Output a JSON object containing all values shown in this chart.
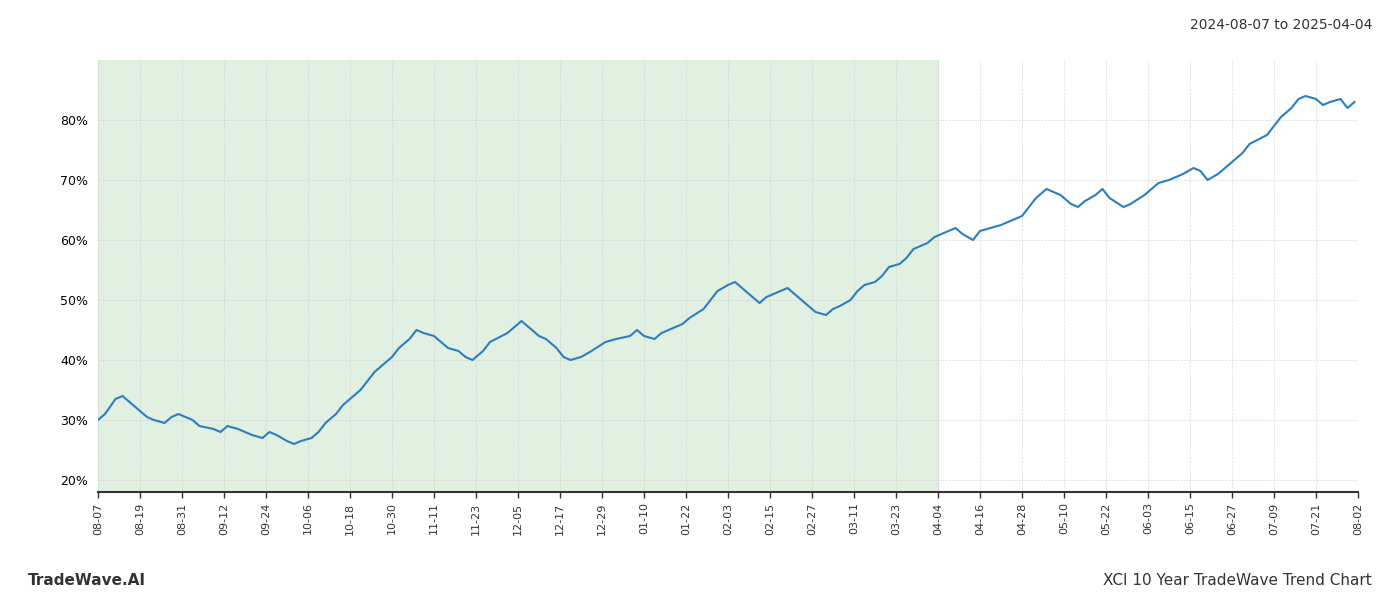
{
  "title_top_right": "2024-08-07 to 2025-04-04",
  "footer_left": "TradeWave.AI",
  "footer_right": "XCI 10 Year TradeWave Trend Chart",
  "line_color": "#2a7fc1",
  "line_width": 1.5,
  "shaded_region_color": "#d6ead6",
  "shaded_alpha": 0.7,
  "background_color": "#ffffff",
  "grid_color": "#cccccc",
  "yticks": [
    20,
    30,
    40,
    50,
    60,
    70,
    80
  ],
  "ylim": [
    18,
    90
  ],
  "x_start": "2024-08-07",
  "x_end": "2025-08-02",
  "shade_start": "2024-08-07",
  "shade_end": "2025-04-04",
  "dates": [
    "2024-08-07",
    "2024-08-09",
    "2024-08-12",
    "2024-08-14",
    "2024-08-16",
    "2024-08-19",
    "2024-08-21",
    "2024-08-23",
    "2024-08-26",
    "2024-08-28",
    "2024-08-30",
    "2024-09-03",
    "2024-09-05",
    "2024-09-09",
    "2024-09-11",
    "2024-09-13",
    "2024-09-16",
    "2024-09-18",
    "2024-09-20",
    "2024-09-23",
    "2024-09-25",
    "2024-09-27",
    "2024-09-30",
    "2024-10-02",
    "2024-10-04",
    "2024-10-07",
    "2024-10-09",
    "2024-10-11",
    "2024-10-14",
    "2024-10-16",
    "2024-10-18",
    "2024-10-21",
    "2024-10-23",
    "2024-10-25",
    "2024-10-28",
    "2024-10-30",
    "2024-11-01",
    "2024-11-04",
    "2024-11-06",
    "2024-11-08",
    "2024-11-11",
    "2024-11-13",
    "2024-11-15",
    "2024-11-18",
    "2024-11-20",
    "2024-11-22",
    "2024-11-25",
    "2024-11-27",
    "2024-12-02",
    "2024-12-04",
    "2024-12-06",
    "2024-12-09",
    "2024-12-11",
    "2024-12-13",
    "2024-12-16",
    "2024-12-18",
    "2024-12-20",
    "2024-12-23",
    "2024-12-26",
    "2024-12-30",
    "2025-01-02",
    "2025-01-06",
    "2025-01-08",
    "2025-01-10",
    "2025-01-13",
    "2025-01-15",
    "2025-01-17",
    "2025-01-21",
    "2025-01-23",
    "2025-01-27",
    "2025-01-29",
    "2025-01-31",
    "2025-02-03",
    "2025-02-05",
    "2025-02-07",
    "2025-02-10",
    "2025-02-12",
    "2025-02-14",
    "2025-02-18",
    "2025-02-20",
    "2025-02-24",
    "2025-02-26",
    "2025-02-28",
    "2025-03-03",
    "2025-03-05",
    "2025-03-07",
    "2025-03-10",
    "2025-03-12",
    "2025-03-14",
    "2025-03-17",
    "2025-03-19",
    "2025-03-21",
    "2025-03-24",
    "2025-03-26",
    "2025-03-28",
    "2025-04-01",
    "2025-04-03",
    "2025-04-07",
    "2025-04-09",
    "2025-04-11",
    "2025-04-14",
    "2025-04-16",
    "2025-04-22",
    "2025-04-24",
    "2025-04-28",
    "2025-04-30",
    "2025-05-02",
    "2025-05-05",
    "2025-05-07",
    "2025-05-09",
    "2025-05-12",
    "2025-05-14",
    "2025-05-16",
    "2025-05-19",
    "2025-05-21",
    "2025-05-23",
    "2025-05-27",
    "2025-05-29",
    "2025-06-02",
    "2025-06-04",
    "2025-06-06",
    "2025-06-09",
    "2025-06-11",
    "2025-06-13",
    "2025-06-16",
    "2025-06-18",
    "2025-06-20",
    "2025-06-23",
    "2025-06-25",
    "2025-06-27",
    "2025-06-30",
    "2025-07-02",
    "2025-07-07",
    "2025-07-09",
    "2025-07-11",
    "2025-07-14",
    "2025-07-16",
    "2025-07-18",
    "2025-07-21",
    "2025-07-23",
    "2025-07-25",
    "2025-07-28",
    "2025-07-30",
    "2025-08-01"
  ],
  "values": [
    30.0,
    31.0,
    33.5,
    34.0,
    33.0,
    31.5,
    30.5,
    30.0,
    29.5,
    30.5,
    31.0,
    30.0,
    29.0,
    28.5,
    28.0,
    29.0,
    28.5,
    28.0,
    27.5,
    27.0,
    28.0,
    27.5,
    26.5,
    26.0,
    26.5,
    27.0,
    28.0,
    29.5,
    31.0,
    32.5,
    33.5,
    35.0,
    36.5,
    38.0,
    39.5,
    40.5,
    42.0,
    43.5,
    45.0,
    44.5,
    44.0,
    43.0,
    42.0,
    41.5,
    40.5,
    40.0,
    41.5,
    43.0,
    44.5,
    45.5,
    46.5,
    45.0,
    44.0,
    43.5,
    42.0,
    40.5,
    40.0,
    40.5,
    41.5,
    43.0,
    43.5,
    44.0,
    45.0,
    44.0,
    43.5,
    44.5,
    45.0,
    46.0,
    47.0,
    48.5,
    50.0,
    51.5,
    52.5,
    53.0,
    52.0,
    50.5,
    49.5,
    50.5,
    51.5,
    52.0,
    50.0,
    49.0,
    48.0,
    47.5,
    48.5,
    49.0,
    50.0,
    51.5,
    52.5,
    53.0,
    54.0,
    55.5,
    56.0,
    57.0,
    58.5,
    59.5,
    60.5,
    61.5,
    62.0,
    61.0,
    60.0,
    61.5,
    62.5,
    63.0,
    64.0,
    65.5,
    67.0,
    68.5,
    68.0,
    67.5,
    66.0,
    65.5,
    66.5,
    67.5,
    68.5,
    67.0,
    65.5,
    66.0,
    67.5,
    68.5,
    69.5,
    70.0,
    70.5,
    71.0,
    72.0,
    71.5,
    70.0,
    71.0,
    72.0,
    73.0,
    74.5,
    76.0,
    77.5,
    79.0,
    80.5,
    82.0,
    83.5,
    84.0,
    83.5,
    82.5,
    83.0,
    83.5,
    82.0,
    83.0
  ],
  "xtick_dates": [
    "2024-08-07",
    "2024-08-19",
    "2024-08-31",
    "2024-09-12",
    "2024-09-24",
    "2024-10-06",
    "2024-10-18",
    "2024-10-30",
    "2024-11-11",
    "2024-11-23",
    "2024-12-05",
    "2024-12-17",
    "2024-12-29",
    "2025-01-10",
    "2025-01-22",
    "2025-02-03",
    "2025-02-15",
    "2025-02-27",
    "2025-03-11",
    "2025-03-23",
    "2025-04-04",
    "2025-04-16",
    "2025-04-28",
    "2025-05-10",
    "2025-05-22",
    "2025-06-03",
    "2025-06-15",
    "2025-06-27",
    "2025-07-09",
    "2025-07-21",
    "2025-08-02"
  ]
}
